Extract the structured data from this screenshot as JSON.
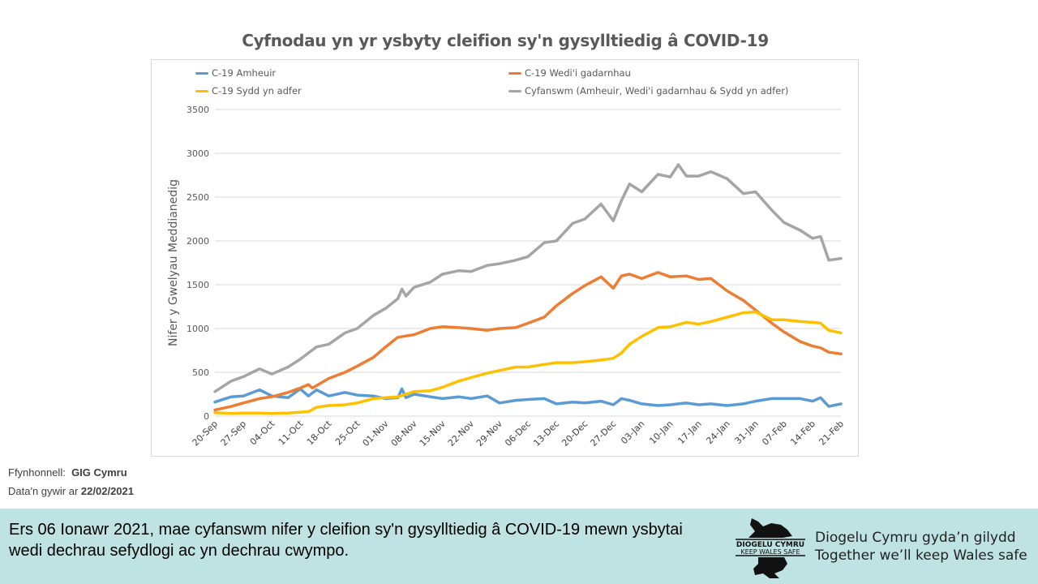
{
  "chart_data": {
    "type": "line",
    "title": "Cyfnodau yn yr ysbyty cleifion sy'n gysylltiedig â COVID-19",
    "xlabel": "",
    "ylabel": "Nifer y Gwelyau Meddianedig",
    "ylim": [
      0,
      3500
    ],
    "yticks": [
      "0",
      "500",
      "1000",
      "1500",
      "2000",
      "2500",
      "3000",
      "3500"
    ],
    "xlim": [
      "2020-09-20",
      "2021-02-21"
    ],
    "xtick_labels": [
      "20-Sep",
      "27-Sep",
      "04-Oct",
      "11-Oct",
      "18-Oct",
      "25-Oct",
      "01-Nov",
      "08-Nov",
      "15-Nov",
      "22-Nov",
      "29-Nov",
      "06-Dec",
      "13-Dec",
      "20-Dec",
      "27-Dec",
      "03-Jan",
      "10-Jan",
      "17-Jan",
      "24-Jan",
      "31-Jan",
      "07-Feb",
      "14-Feb",
      "21-Feb"
    ],
    "grid": true,
    "legend_placement": "top",
    "series": [
      {
        "name": "C-19 Amheuir",
        "color": "#5b9bd5",
        "points": [
          [
            "2020-09-20",
            160
          ],
          [
            "2020-09-24",
            220
          ],
          [
            "2020-09-27",
            230
          ],
          [
            "2020-10-01",
            300
          ],
          [
            "2020-10-04",
            230
          ],
          [
            "2020-10-08",
            210
          ],
          [
            "2020-10-11",
            310
          ],
          [
            "2020-10-13",
            230
          ],
          [
            "2020-10-15",
            300
          ],
          [
            "2020-10-18",
            230
          ],
          [
            "2020-10-22",
            270
          ],
          [
            "2020-10-25",
            240
          ],
          [
            "2020-10-29",
            230
          ],
          [
            "2020-11-01",
            200
          ],
          [
            "2020-11-04",
            210
          ],
          [
            "2020-11-05",
            310
          ],
          [
            "2020-11-06",
            210
          ],
          [
            "2020-11-08",
            250
          ],
          [
            "2020-11-12",
            220
          ],
          [
            "2020-11-15",
            200
          ],
          [
            "2020-11-19",
            220
          ],
          [
            "2020-11-22",
            200
          ],
          [
            "2020-11-26",
            230
          ],
          [
            "2020-11-29",
            150
          ],
          [
            "2020-12-03",
            180
          ],
          [
            "2020-12-06",
            190
          ],
          [
            "2020-12-10",
            200
          ],
          [
            "2020-12-13",
            140
          ],
          [
            "2020-12-17",
            160
          ],
          [
            "2020-12-20",
            150
          ],
          [
            "2020-12-24",
            170
          ],
          [
            "2020-12-27",
            130
          ],
          [
            "2020-12-29",
            200
          ],
          [
            "2020-12-31",
            180
          ],
          [
            "2021-01-03",
            140
          ],
          [
            "2021-01-07",
            120
          ],
          [
            "2021-01-10",
            130
          ],
          [
            "2021-01-14",
            150
          ],
          [
            "2021-01-17",
            130
          ],
          [
            "2021-01-20",
            140
          ],
          [
            "2021-01-24",
            120
          ],
          [
            "2021-01-28",
            140
          ],
          [
            "2021-01-31",
            170
          ],
          [
            "2021-02-04",
            200
          ],
          [
            "2021-02-07",
            200
          ],
          [
            "2021-02-11",
            200
          ],
          [
            "2021-02-14",
            170
          ],
          [
            "2021-02-16",
            210
          ],
          [
            "2021-02-18",
            110
          ],
          [
            "2021-02-21",
            140
          ]
        ]
      },
      {
        "name": "C-19 Wedi'i gadarnhau",
        "color": "#ed7d31",
        "points": [
          [
            "2020-09-20",
            70
          ],
          [
            "2020-09-24",
            110
          ],
          [
            "2020-09-27",
            150
          ],
          [
            "2020-10-01",
            200
          ],
          [
            "2020-10-04",
            220
          ],
          [
            "2020-10-08",
            270
          ],
          [
            "2020-10-11",
            320
          ],
          [
            "2020-10-13",
            360
          ],
          [
            "2020-10-14",
            320
          ],
          [
            "2020-10-18",
            430
          ],
          [
            "2020-10-22",
            500
          ],
          [
            "2020-10-25",
            570
          ],
          [
            "2020-10-29",
            670
          ],
          [
            "2020-11-01",
            790
          ],
          [
            "2020-11-04",
            900
          ],
          [
            "2020-11-08",
            930
          ],
          [
            "2020-11-12",
            1000
          ],
          [
            "2020-11-15",
            1020
          ],
          [
            "2020-11-19",
            1010
          ],
          [
            "2020-11-22",
            1000
          ],
          [
            "2020-11-26",
            980
          ],
          [
            "2020-11-29",
            1000
          ],
          [
            "2020-12-03",
            1010
          ],
          [
            "2020-12-06",
            1060
          ],
          [
            "2020-12-10",
            1130
          ],
          [
            "2020-12-13",
            1260
          ],
          [
            "2020-12-17",
            1400
          ],
          [
            "2020-12-20",
            1490
          ],
          [
            "2020-12-24",
            1590
          ],
          [
            "2020-12-27",
            1460
          ],
          [
            "2020-12-29",
            1600
          ],
          [
            "2020-12-31",
            1620
          ],
          [
            "2021-01-03",
            1570
          ],
          [
            "2021-01-07",
            1640
          ],
          [
            "2021-01-10",
            1590
          ],
          [
            "2021-01-14",
            1600
          ],
          [
            "2021-01-17",
            1560
          ],
          [
            "2021-01-20",
            1570
          ],
          [
            "2021-01-24",
            1430
          ],
          [
            "2021-01-28",
            1320
          ],
          [
            "2021-01-31",
            1210
          ],
          [
            "2021-02-04",
            1060
          ],
          [
            "2021-02-07",
            960
          ],
          [
            "2021-02-11",
            850
          ],
          [
            "2021-02-14",
            800
          ],
          [
            "2021-02-16",
            780
          ],
          [
            "2021-02-18",
            730
          ],
          [
            "2021-02-21",
            710
          ]
        ]
      },
      {
        "name": "C-19 Sydd yn adfer",
        "color": "#ffc000",
        "points": [
          [
            "2020-09-20",
            40
          ],
          [
            "2020-09-24",
            30
          ],
          [
            "2020-09-27",
            35
          ],
          [
            "2020-10-01",
            35
          ],
          [
            "2020-10-04",
            30
          ],
          [
            "2020-10-08",
            35
          ],
          [
            "2020-10-11",
            45
          ],
          [
            "2020-10-13",
            50
          ],
          [
            "2020-10-15",
            100
          ],
          [
            "2020-10-18",
            120
          ],
          [
            "2020-10-22",
            130
          ],
          [
            "2020-10-25",
            150
          ],
          [
            "2020-10-29",
            200
          ],
          [
            "2020-11-01",
            210
          ],
          [
            "2020-11-04",
            220
          ],
          [
            "2020-11-08",
            280
          ],
          [
            "2020-11-12",
            290
          ],
          [
            "2020-11-15",
            330
          ],
          [
            "2020-11-19",
            400
          ],
          [
            "2020-11-22",
            440
          ],
          [
            "2020-11-26",
            490
          ],
          [
            "2020-11-29",
            520
          ],
          [
            "2020-12-03",
            560
          ],
          [
            "2020-12-06",
            560
          ],
          [
            "2020-12-10",
            590
          ],
          [
            "2020-12-13",
            610
          ],
          [
            "2020-12-17",
            610
          ],
          [
            "2020-12-20",
            620
          ],
          [
            "2020-12-24",
            640
          ],
          [
            "2020-12-27",
            660
          ],
          [
            "2020-12-29",
            720
          ],
          [
            "2020-12-31",
            820
          ],
          [
            "2021-01-03",
            910
          ],
          [
            "2021-01-07",
            1010
          ],
          [
            "2021-01-10",
            1020
          ],
          [
            "2021-01-14",
            1070
          ],
          [
            "2021-01-17",
            1050
          ],
          [
            "2021-01-20",
            1080
          ],
          [
            "2021-01-24",
            1130
          ],
          [
            "2021-01-28",
            1180
          ],
          [
            "2021-01-31",
            1190
          ],
          [
            "2021-02-04",
            1100
          ],
          [
            "2021-02-07",
            1100
          ],
          [
            "2021-02-11",
            1080
          ],
          [
            "2021-02-14",
            1070
          ],
          [
            "2021-02-16",
            1060
          ],
          [
            "2021-02-18",
            980
          ],
          [
            "2021-02-21",
            950
          ]
        ]
      },
      {
        "name": "Cyfanswm (Amheuir, Wedi'i gadarnhau & Sydd yn adfer)",
        "color": "#a5a5a5",
        "points": [
          [
            "2020-09-20",
            280
          ],
          [
            "2020-09-24",
            400
          ],
          [
            "2020-09-27",
            450
          ],
          [
            "2020-10-01",
            540
          ],
          [
            "2020-10-04",
            480
          ],
          [
            "2020-10-08",
            560
          ],
          [
            "2020-10-11",
            650
          ],
          [
            "2020-10-15",
            790
          ],
          [
            "2020-10-18",
            820
          ],
          [
            "2020-10-22",
            950
          ],
          [
            "2020-10-25",
            1000
          ],
          [
            "2020-10-29",
            1150
          ],
          [
            "2020-11-01",
            1230
          ],
          [
            "2020-11-04",
            1340
          ],
          [
            "2020-11-05",
            1450
          ],
          [
            "2020-11-06",
            1370
          ],
          [
            "2020-11-08",
            1470
          ],
          [
            "2020-11-12",
            1530
          ],
          [
            "2020-11-15",
            1620
          ],
          [
            "2020-11-19",
            1660
          ],
          [
            "2020-11-22",
            1650
          ],
          [
            "2020-11-26",
            1720
          ],
          [
            "2020-11-29",
            1740
          ],
          [
            "2020-12-03",
            1780
          ],
          [
            "2020-12-06",
            1820
          ],
          [
            "2020-12-10",
            1980
          ],
          [
            "2020-12-13",
            2000
          ],
          [
            "2020-12-17",
            2200
          ],
          [
            "2020-12-20",
            2250
          ],
          [
            "2020-12-24",
            2420
          ],
          [
            "2020-12-27",
            2230
          ],
          [
            "2020-12-29",
            2460
          ],
          [
            "2020-12-31",
            2650
          ],
          [
            "2021-01-03",
            2560
          ],
          [
            "2021-01-07",
            2760
          ],
          [
            "2021-01-10",
            2730
          ],
          [
            "2021-01-12",
            2870
          ],
          [
            "2021-01-14",
            2740
          ],
          [
            "2021-01-17",
            2740
          ],
          [
            "2021-01-20",
            2790
          ],
          [
            "2021-01-24",
            2710
          ],
          [
            "2021-01-28",
            2540
          ],
          [
            "2021-01-31",
            2560
          ],
          [
            "2021-02-04",
            2350
          ],
          [
            "2021-02-07",
            2210
          ],
          [
            "2021-02-11",
            2120
          ],
          [
            "2021-02-14",
            2030
          ],
          [
            "2021-02-16",
            2050
          ],
          [
            "2021-02-18",
            1780
          ],
          [
            "2021-02-21",
            1800
          ]
        ]
      }
    ]
  },
  "source": {
    "label": "Ffynhonnell:",
    "value": "GIG Cymru",
    "date_label": "Data'n gywir ar",
    "date": "22/02/2021"
  },
  "banner": {
    "text": "Ers 06 Ionawr 2021, mae cyfanswm nifer y cleifion sy'n gysylltiedig â COVID-19 mewn ysbytai wedi dechrau sefydlogi ac yn dechrau cwympo.",
    "logo_text_1": "DIOGELU CYMRU",
    "logo_text_2": "KEEP WALES SAFE",
    "tagline_1": "Diogelu Cymru gyda’n gilydd",
    "tagline_2": "Together we’ll keep Wales safe"
  }
}
